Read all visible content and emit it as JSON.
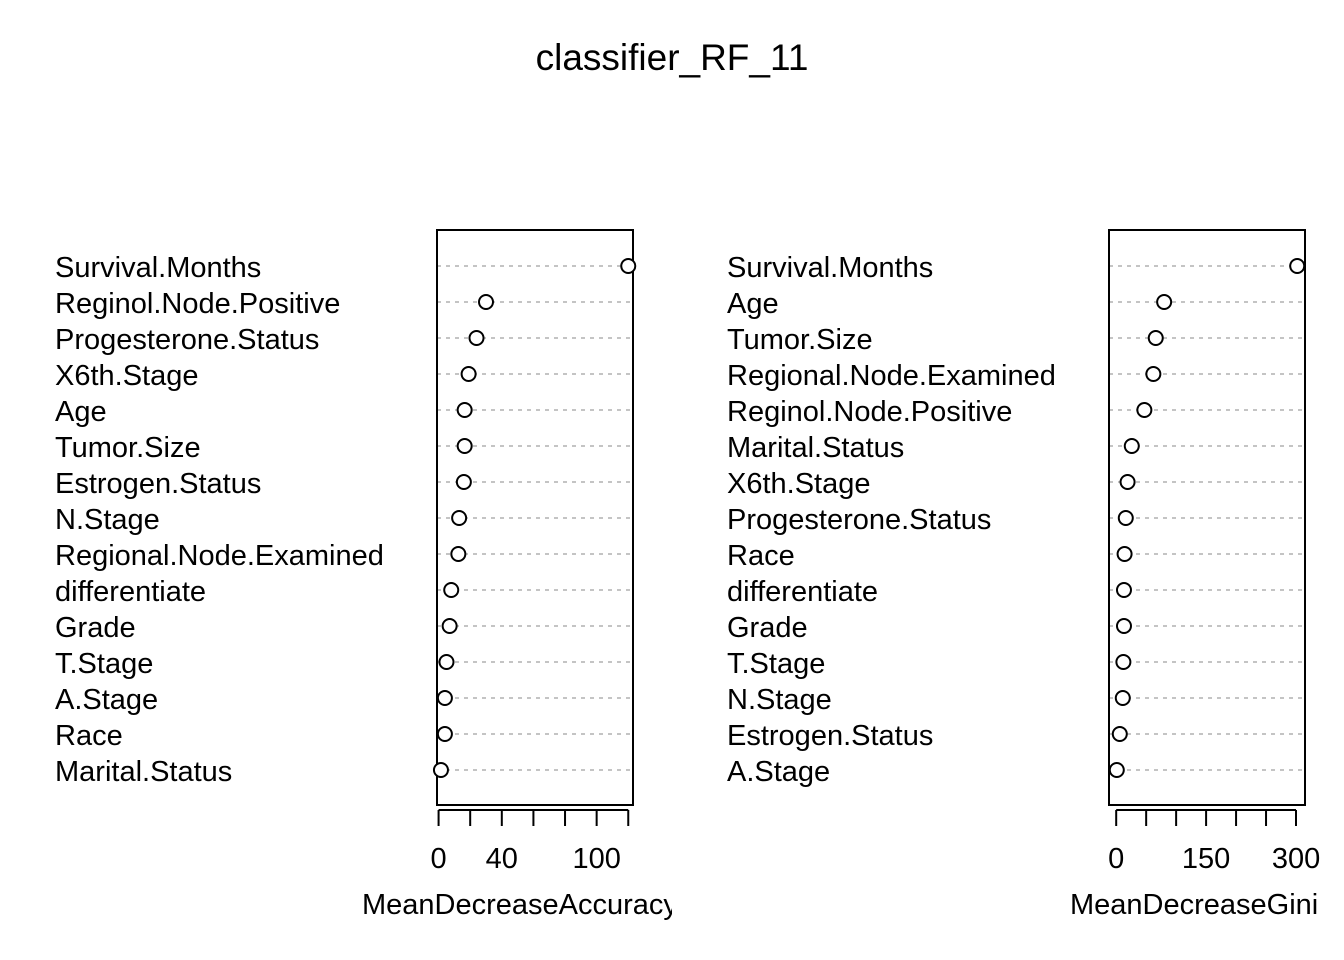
{
  "title": "classifier_RF_11",
  "chart_data": [
    {
      "type": "scatter",
      "xlabel": "MeanDecreaseAccuracy",
      "xlim": [
        -1,
        123
      ],
      "xticks": [
        0,
        20,
        40,
        60,
        80,
        100,
        120
      ],
      "xtick_labels": [
        {
          "value": 0,
          "label": "0"
        },
        {
          "value": 40,
          "label": "40"
        },
        {
          "value": 100,
          "label": "100"
        }
      ],
      "categories": [
        "Survival.Months",
        "Reginol.Node.Positive",
        "Progesterone.Status",
        "X6th.Stage",
        "Age",
        "Tumor.Size",
        "Estrogen.Status",
        "N.Stage",
        "Regional.Node.Examined",
        "differentiate",
        "Grade",
        "T.Stage",
        "A.Stage",
        "Race",
        "Marital.Status"
      ],
      "values": [
        120,
        30,
        24,
        19,
        16.5,
        16.5,
        16,
        13,
        12.5,
        8,
        7,
        5,
        4,
        4,
        1.5
      ]
    },
    {
      "type": "scatter",
      "xlabel": "MeanDecreaseGini",
      "xlim": [
        -12,
        315
      ],
      "xticks": [
        0,
        50,
        100,
        150,
        200,
        250,
        300
      ],
      "xtick_labels": [
        {
          "value": 0,
          "label": "0"
        },
        {
          "value": 150,
          "label": "150"
        },
        {
          "value": 300,
          "label": "300"
        }
      ],
      "categories": [
        "Survival.Months",
        "Age",
        "Tumor.Size",
        "Regional.Node.Examined",
        "Reginol.Node.Positive",
        "Marital.Status",
        "X6th.Stage",
        "Progesterone.Status",
        "Race",
        "differentiate",
        "Grade",
        "T.Stage",
        "N.Stage",
        "Estrogen.Status",
        "A.Stage"
      ],
      "values": [
        302,
        80,
        66,
        62,
        47,
        26,
        19,
        16,
        14,
        13,
        13,
        12,
        11,
        6,
        1
      ]
    }
  ]
}
